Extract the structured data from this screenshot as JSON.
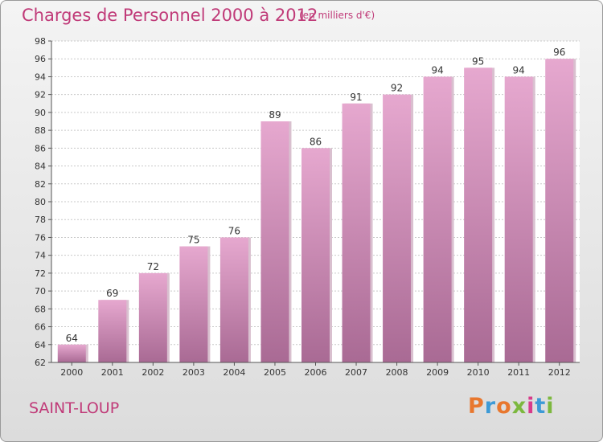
{
  "header": {
    "title": "Charges de Personnel 2000 à 2012",
    "unit": "(en milliers d'€)"
  },
  "footer": {
    "commune": "SAINT-LOUP",
    "logo": "Proxiti",
    "logo_colors": [
      "#e8772e",
      "#3d9ad6",
      "#e8772e",
      "#7cb83e",
      "#d83b8a",
      "#3d9ad6",
      "#7cb83e"
    ]
  },
  "colors": {
    "title": "#c03a78",
    "bar_top": "#e6a8cf",
    "bar_bottom": "#a96a94",
    "bar_side": "#d9c0cf",
    "grid": "#c9c9c9",
    "plot_bg": "#ffffff"
  },
  "chart_data": {
    "type": "bar",
    "title": "Charges de Personnel 2000 à 2012",
    "xlabel": "",
    "ylabel": "",
    "categories": [
      "2000",
      "2001",
      "2002",
      "2003",
      "2004",
      "2005",
      "2006",
      "2007",
      "2008",
      "2009",
      "2010",
      "2011",
      "2012"
    ],
    "values": [
      64,
      69,
      72,
      75,
      76,
      89,
      86,
      91,
      92,
      94,
      95,
      94,
      96
    ],
    "ylim": [
      62,
      98
    ],
    "yticks": [
      62,
      64,
      66,
      68,
      70,
      72,
      74,
      76,
      78,
      80,
      82,
      84,
      86,
      88,
      90,
      92,
      94,
      96,
      98
    ],
    "grid": true,
    "data_labels": true
  }
}
